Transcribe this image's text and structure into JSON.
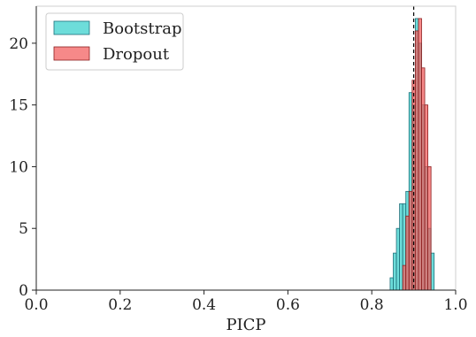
{
  "chart_data": {
    "type": "histogram",
    "xlabel": "PICP",
    "ylabel": "",
    "xlim": [
      0.0,
      1.0
    ],
    "ylim": [
      0,
      23
    ],
    "xticks": [
      0.0,
      0.2,
      0.4,
      0.6,
      0.8,
      1.0
    ],
    "xtick_labels": [
      "0.0",
      "0.2",
      "0.4",
      "0.6",
      "0.8",
      "1.0"
    ],
    "yticks": [
      0,
      5,
      10,
      15,
      20
    ],
    "ytick_labels": [
      "0",
      "5",
      "10",
      "15",
      "20"
    ],
    "bin_width": 0.0075,
    "grid": false,
    "legend_position": "upper-left",
    "reference_line": {
      "x": 0.9,
      "style": "dashed",
      "color": "#000000"
    },
    "series": [
      {
        "name": "Bootstrap",
        "color": "#35d0cc",
        "edge_color": "#1f6f7a",
        "bins": [
          {
            "x": 0.8475,
            "count": 1
          },
          {
            "x": 0.855,
            "count": 3
          },
          {
            "x": 0.8625,
            "count": 5
          },
          {
            "x": 0.87,
            "count": 7
          },
          {
            "x": 0.8775,
            "count": 7
          },
          {
            "x": 0.885,
            "count": 8
          },
          {
            "x": 0.8925,
            "count": 16
          },
          {
            "x": 0.9,
            "count": 15
          },
          {
            "x": 0.9075,
            "count": 22
          },
          {
            "x": 0.915,
            "count": 20
          },
          {
            "x": 0.9225,
            "count": 15
          },
          {
            "x": 0.93,
            "count": 10
          },
          {
            "x": 0.9375,
            "count": 5
          },
          {
            "x": 0.945,
            "count": 3
          }
        ]
      },
      {
        "name": "Dropout",
        "color": "#f25c5c",
        "edge_color": "#8c2020",
        "bins": [
          {
            "x": 0.8775,
            "count": 2
          },
          {
            "x": 0.885,
            "count": 6
          },
          {
            "x": 0.8925,
            "count": 8
          },
          {
            "x": 0.9,
            "count": 17
          },
          {
            "x": 0.9075,
            "count": 21
          },
          {
            "x": 0.915,
            "count": 22
          },
          {
            "x": 0.9225,
            "count": 18
          },
          {
            "x": 0.93,
            "count": 15
          },
          {
            "x": 0.9375,
            "count": 10
          }
        ]
      }
    ]
  }
}
